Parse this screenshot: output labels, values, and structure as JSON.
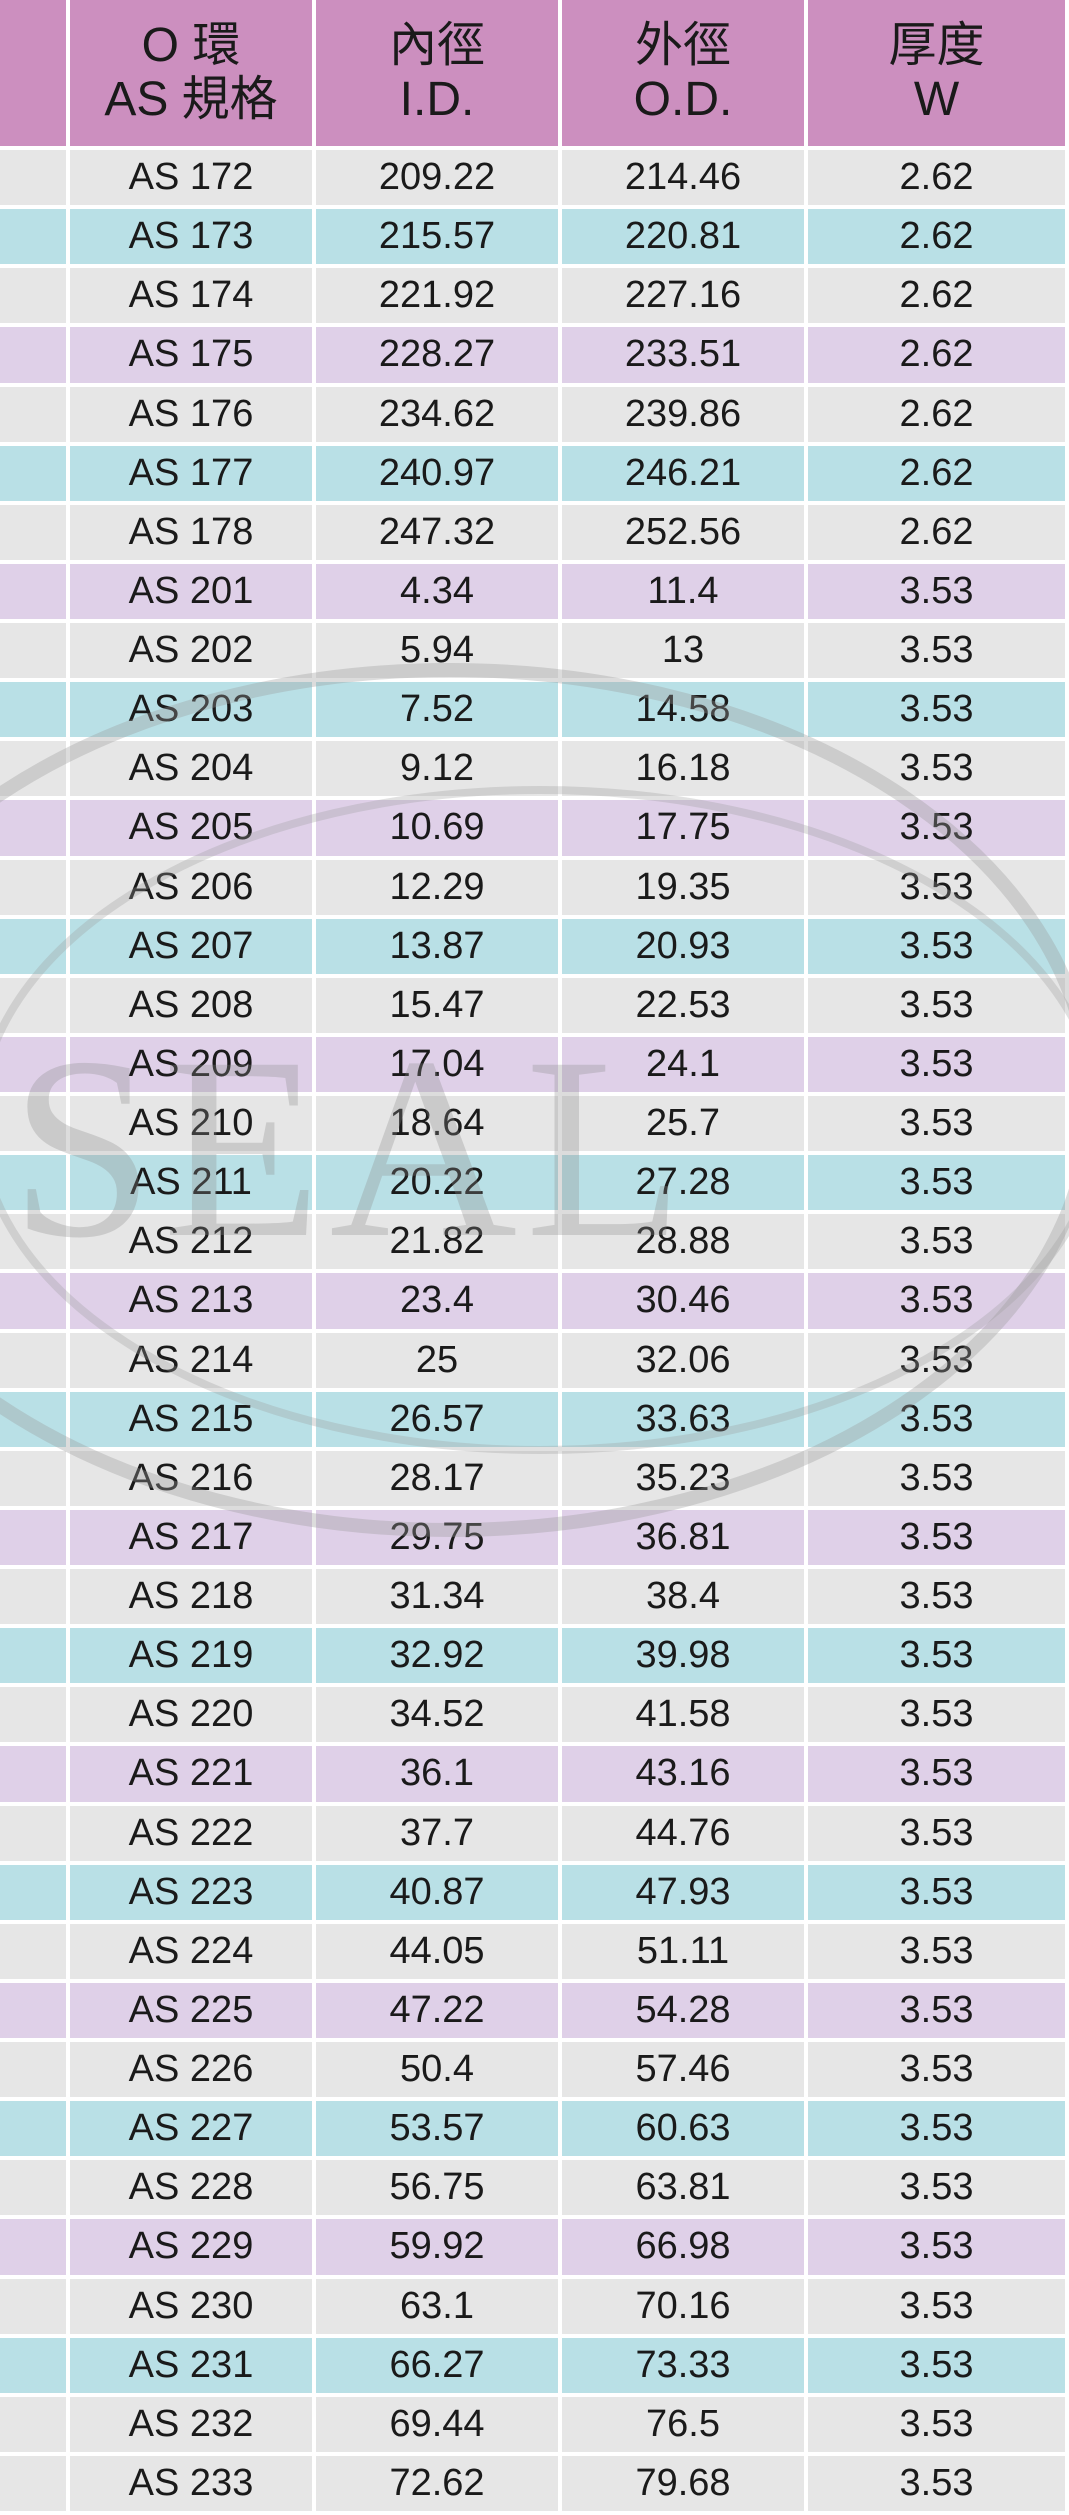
{
  "header": {
    "spec_line1": "O 環",
    "spec_line2": "AS 規格",
    "id_line1": "內徑",
    "id_line2": "I.D.",
    "od_line1": "外徑",
    "od_line2": "O.D.",
    "w_line1": "厚度",
    "w_line2": "W"
  },
  "watermark": {
    "text": "SEAL"
  },
  "colors": {
    "header": "#cc8fbf",
    "gray_row": "#e6e6e6",
    "blue_row": "#b9e0e6",
    "purple_row": "#dfd0e8"
  },
  "rows": [
    {
      "spec": "AS 172",
      "id": "209.22",
      "od": "214.46",
      "w": "2.62",
      "color": "gray"
    },
    {
      "spec": "AS 173",
      "id": "215.57",
      "od": "220.81",
      "w": "2.62",
      "color": "blue"
    },
    {
      "spec": "AS 174",
      "id": "221.92",
      "od": "227.16",
      "w": "2.62",
      "color": "gray"
    },
    {
      "spec": "AS 175",
      "id": "228.27",
      "od": "233.51",
      "w": "2.62",
      "color": "purple"
    },
    {
      "spec": "AS 176",
      "id": "234.62",
      "od": "239.86",
      "w": "2.62",
      "color": "gray"
    },
    {
      "spec": "AS 177",
      "id": "240.97",
      "od": "246.21",
      "w": "2.62",
      "color": "blue"
    },
    {
      "spec": "AS 178",
      "id": "247.32",
      "od": "252.56",
      "w": "2.62",
      "color": "gray"
    },
    {
      "spec": "AS 201",
      "id": "4.34",
      "od": "11.4",
      "w": "3.53",
      "color": "purple"
    },
    {
      "spec": "AS 202",
      "id": "5.94",
      "od": "13",
      "w": "3.53",
      "color": "gray"
    },
    {
      "spec": "AS 203",
      "id": "7.52",
      "od": "14.58",
      "w": "3.53",
      "color": "blue"
    },
    {
      "spec": "AS 204",
      "id": "9.12",
      "od": "16.18",
      "w": "3.53",
      "color": "gray"
    },
    {
      "spec": "AS 205",
      "id": "10.69",
      "od": "17.75",
      "w": "3.53",
      "color": "purple"
    },
    {
      "spec": "AS 206",
      "id": "12.29",
      "od": "19.35",
      "w": "3.53",
      "color": "gray"
    },
    {
      "spec": "AS 207",
      "id": "13.87",
      "od": "20.93",
      "w": "3.53",
      "color": "blue"
    },
    {
      "spec": "AS 208",
      "id": "15.47",
      "od": "22.53",
      "w": "3.53",
      "color": "gray"
    },
    {
      "spec": "AS 209",
      "id": "17.04",
      "od": "24.1",
      "w": "3.53",
      "color": "purple"
    },
    {
      "spec": "AS 210",
      "id": "18.64",
      "od": "25.7",
      "w": "3.53",
      "color": "gray"
    },
    {
      "spec": "AS 211",
      "id": "20.22",
      "od": "27.28",
      "w": "3.53",
      "color": "blue"
    },
    {
      "spec": "AS 212",
      "id": "21.82",
      "od": "28.88",
      "w": "3.53",
      "color": "gray"
    },
    {
      "spec": "AS 213",
      "id": "23.4",
      "od": "30.46",
      "w": "3.53",
      "color": "purple"
    },
    {
      "spec": "AS 214",
      "id": "25",
      "od": "32.06",
      "w": "3.53",
      "color": "gray"
    },
    {
      "spec": "AS 215",
      "id": "26.57",
      "od": "33.63",
      "w": "3.53",
      "color": "blue"
    },
    {
      "spec": "AS 216",
      "id": "28.17",
      "od": "35.23",
      "w": "3.53",
      "color": "gray"
    },
    {
      "spec": "AS 217",
      "id": "29.75",
      "od": "36.81",
      "w": "3.53",
      "color": "purple"
    },
    {
      "spec": "AS 218",
      "id": "31.34",
      "od": "38.4",
      "w": "3.53",
      "color": "gray"
    },
    {
      "spec": "AS 219",
      "id": "32.92",
      "od": "39.98",
      "w": "3.53",
      "color": "blue"
    },
    {
      "spec": "AS 220",
      "id": "34.52",
      "od": "41.58",
      "w": "3.53",
      "color": "gray"
    },
    {
      "spec": "AS 221",
      "id": "36.1",
      "od": "43.16",
      "w": "3.53",
      "color": "purple"
    },
    {
      "spec": "AS 222",
      "id": "37.7",
      "od": "44.76",
      "w": "3.53",
      "color": "gray"
    },
    {
      "spec": "AS 223",
      "id": "40.87",
      "od": "47.93",
      "w": "3.53",
      "color": "blue"
    },
    {
      "spec": "AS 224",
      "id": "44.05",
      "od": "51.11",
      "w": "3.53",
      "color": "gray"
    },
    {
      "spec": "AS 225",
      "id": "47.22",
      "od": "54.28",
      "w": "3.53",
      "color": "purple"
    },
    {
      "spec": "AS 226",
      "id": "50.4",
      "od": "57.46",
      "w": "3.53",
      "color": "gray"
    },
    {
      "spec": "AS 227",
      "id": "53.57",
      "od": "60.63",
      "w": "3.53",
      "color": "blue"
    },
    {
      "spec": "AS 228",
      "id": "56.75",
      "od": "63.81",
      "w": "3.53",
      "color": "gray"
    },
    {
      "spec": "AS 229",
      "id": "59.92",
      "od": "66.98",
      "w": "3.53",
      "color": "purple"
    },
    {
      "spec": "AS 230",
      "id": "63.1",
      "od": "70.16",
      "w": "3.53",
      "color": "gray"
    },
    {
      "spec": "AS 231",
      "id": "66.27",
      "od": "73.33",
      "w": "3.53",
      "color": "blue"
    },
    {
      "spec": "AS 232",
      "id": "69.44",
      "od": "76.5",
      "w": "3.53",
      "color": "gray"
    },
    {
      "spec": "AS 233",
      "id": "72.62",
      "od": "79.68",
      "w": "3.53",
      "color": "gray"
    }
  ]
}
